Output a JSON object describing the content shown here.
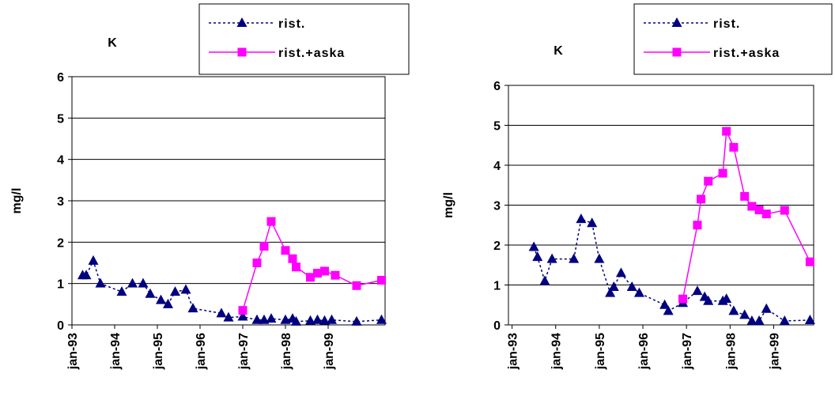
{
  "chart_data": [
    {
      "type": "line",
      "title": "K",
      "y_label": "mg/l",
      "legend": "top-right",
      "grid": true,
      "xlim": [
        "jan-93",
        "maj-00"
      ],
      "xticks": [
        "jan-93",
        "jan-94",
        "jan-95",
        "jan-96",
        "jan-97",
        "jan-98",
        "jan-99"
      ],
      "ylim": [
        0,
        6
      ],
      "yticks": [
        0,
        1,
        2,
        3,
        4,
        5,
        6
      ],
      "series": [
        {
          "name": "rist.",
          "color": "#000080",
          "marker": "triangle",
          "dashed": true,
          "x": [
            "apr-93",
            "maj-93",
            "jul-93",
            "sep-93",
            "mar-94",
            "jun-94",
            "sep-94",
            "nov-94",
            "feb-95",
            "apr-95",
            "jun-95",
            "sep-95",
            "nov-95",
            "jul-96",
            "sep-96",
            "jan-97",
            "maj-97",
            "jul-97",
            "sep-97",
            "jan-98",
            "mar-98",
            "apr-98",
            "aug-98",
            "okt-98",
            "dec-98",
            "feb-99",
            "sep-99",
            "apr-00"
          ],
          "values": [
            1.2,
            1.2,
            1.55,
            1.0,
            0.8,
            1.0,
            1.0,
            0.75,
            0.6,
            0.5,
            0.8,
            0.85,
            0.4,
            0.28,
            0.18,
            0.2,
            0.12,
            0.12,
            0.15,
            0.12,
            0.15,
            0.08,
            0.1,
            0.12,
            0.1,
            0.12,
            0.08,
            0.12
          ]
        },
        {
          "name": "rist.+aska",
          "color": "#ff00ff",
          "marker": "square",
          "dashed": false,
          "x": [
            "jan-97",
            "maj-97",
            "jul-97",
            "sep-97",
            "jan-98",
            "mar-98",
            "apr-98",
            "aug-98",
            "okt-98",
            "dec-98",
            "mar-99",
            "sep-99",
            "apr-00"
          ],
          "values": [
            0.35,
            1.5,
            1.9,
            2.5,
            1.8,
            1.6,
            1.4,
            1.15,
            1.25,
            1.3,
            1.2,
            0.95,
            1.08
          ]
        }
      ]
    },
    {
      "type": "line",
      "title": "K",
      "y_label": "mg/l",
      "legend": "top-right",
      "grid": true,
      "xlim": [
        "dec-92",
        "dec-99"
      ],
      "xticks": [
        "jan-93",
        "jan-94",
        "jan-95",
        "jan-96",
        "jan-97",
        "jan-98",
        "jan-99"
      ],
      "ylim": [
        0,
        6
      ],
      "yticks": [
        0,
        1,
        2,
        3,
        4,
        5,
        6
      ],
      "series": [
        {
          "name": "rist.",
          "color": "#000080",
          "marker": "triangle",
          "dashed": true,
          "x": [
            "jul-93",
            "aug-93",
            "okt-93",
            "dec-93",
            "jun-94",
            "aug-94",
            "nov-94",
            "jan-95",
            "apr-95",
            "maj-95",
            "jul-95",
            "okt-95",
            "dec-95",
            "jul-96",
            "aug-96",
            "dec-96",
            "apr-97",
            "jun-97",
            "jul-97",
            "nov-97",
            "dec-97",
            "feb-98",
            "maj-98",
            "jul-98",
            "sep-98",
            "nov-98",
            "apr-99",
            "nov-99"
          ],
          "values": [
            1.95,
            1.7,
            1.1,
            1.65,
            1.65,
            2.65,
            2.55,
            1.65,
            0.8,
            0.95,
            1.3,
            0.95,
            0.8,
            0.5,
            0.35,
            0.55,
            0.85,
            0.7,
            0.6,
            0.6,
            0.65,
            0.35,
            0.25,
            0.1,
            0.1,
            0.4,
            0.1,
            0.12
          ]
        },
        {
          "name": "rist.+aska",
          "color": "#ff00ff",
          "marker": "square",
          "dashed": false,
          "x": [
            "dec-96",
            "apr-97",
            "maj-97",
            "jul-97",
            "nov-97",
            "dec-97",
            "feb-98",
            "maj-98",
            "jul-98",
            "sep-98",
            "nov-98",
            "apr-99",
            "nov-99"
          ],
          "values": [
            0.65,
            2.5,
            3.15,
            3.6,
            3.8,
            4.85,
            4.45,
            3.22,
            2.97,
            2.88,
            2.78,
            2.87,
            1.58
          ]
        }
      ]
    }
  ]
}
